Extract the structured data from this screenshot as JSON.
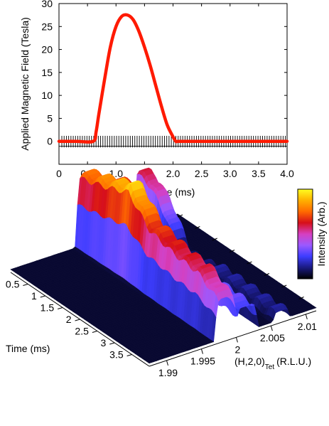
{
  "chart_data": [
    {
      "type": "line",
      "ylabel": "Applied Magnetic Field (Tesla)",
      "xlabel": "Time (ms)",
      "xlim": [
        0,
        4.0
      ],
      "ylim": [
        -5,
        30
      ],
      "x_ticks": [
        "0",
        "0.5",
        "1.0",
        "1.5",
        "2.0",
        "2.5",
        "3.0",
        "3.5",
        "4.0"
      ],
      "y_ticks": [
        "0",
        "5",
        "10",
        "15",
        "20",
        "25",
        "30"
      ],
      "grid": false,
      "series": [
        {
          "color": "#ff1a00",
          "x": [
            0.0,
            0.3,
            0.6,
            0.65,
            0.7,
            0.8,
            0.9,
            1.0,
            1.1,
            1.2,
            1.3,
            1.4,
            1.5,
            1.6,
            1.7,
            1.8,
            1.9,
            2.0,
            2.05,
            2.1,
            2.5,
            3.0,
            3.5,
            4.0
          ],
          "values": [
            0,
            0,
            0,
            2,
            6,
            13.5,
            20.5,
            25,
            27.2,
            27.5,
            26.5,
            24,
            20.5,
            16.5,
            12,
            7.5,
            3.5,
            1,
            0,
            0,
            0,
            0,
            0,
            0
          ]
        },
        {
          "color": "#000000",
          "x_start": 0.05,
          "x_end": 4.0,
          "spacing": 0.04,
          "amplitude": 1.2
        }
      ]
    },
    {
      "type": "surface",
      "xlabel": "Time (ms)",
      "ylabel_main": "(H,2,0)",
      "ylabel_sub": "Tet",
      "ylabel_tail": "(R.L.U.)",
      "time_ticks": [
        "0.5",
        "1",
        "1.5",
        "2",
        "2.5",
        "3",
        "3.5"
      ],
      "h_ticks": [
        "1.99",
        "1.995",
        "2",
        "2.005",
        "2.01"
      ],
      "colorbar_label": "Intensity (Arb.)",
      "colormap": [
        "#000000",
        "#1a1a80",
        "#3d3dff",
        "#9b59ff",
        "#d63fc0",
        "#d60f1a",
        "#ff6a00",
        "#ffb000",
        "#ffff20"
      ],
      "peaks": [
        {
          "h": 1.9985,
          "base": 0.42,
          "height_profile": [
            [
              0,
              0.75
            ],
            [
              0.2,
              0.85
            ],
            [
              0.35,
              0.95
            ],
            [
              0.5,
              0.7
            ],
            [
              0.7,
              0.62
            ],
            [
              0.85,
              0.6
            ],
            [
              1,
              0.45
            ]
          ]
        },
        {
          "h": 2.0015,
          "base": 0.45,
          "height_profile": [
            [
              0,
              0.55
            ],
            [
              0.12,
              0.72
            ],
            [
              0.22,
              0.7
            ],
            [
              0.3,
              0.45
            ],
            [
              0.4,
              0.32
            ],
            [
              1,
              0.28
            ]
          ]
        },
        {
          "h": 2.0065,
          "base": 0.0,
          "height_profile": [
            [
              0,
              0.6
            ],
            [
              0.1,
              0.55
            ],
            [
              0.2,
              0.35
            ],
            [
              0.3,
              0.05
            ],
            [
              0.42,
              0.06
            ],
            [
              0.55,
              0.12
            ],
            [
              1,
              0.12
            ]
          ]
        }
      ]
    }
  ]
}
